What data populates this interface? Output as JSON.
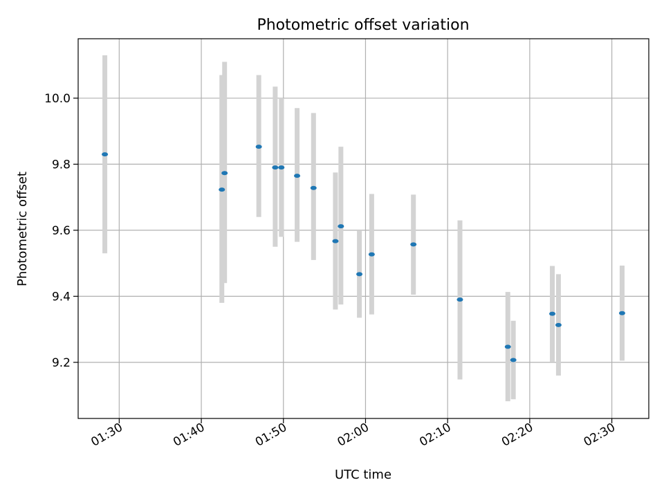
{
  "chart_data": {
    "type": "scatter",
    "title": "Photometric offset variation",
    "xlabel": "UTC time",
    "ylabel": "Photometric offset",
    "xlim": [
      "01:25:00",
      "02:34:30"
    ],
    "ylim": [
      9.03,
      10.18
    ],
    "x_ticks": [
      "01:30",
      "01:40",
      "01:50",
      "02:00",
      "02:10",
      "02:20",
      "02:30"
    ],
    "y_ticks": [
      9.2,
      9.4,
      9.6,
      9.8,
      10.0
    ],
    "grid": true,
    "colors": {
      "marker": "#1f77b4",
      "errorbar": "#d3d3d3"
    },
    "points": [
      {
        "x": "01:28:15",
        "y": 9.83,
        "low": 9.53,
        "high": 10.13
      },
      {
        "x": "01:42:30",
        "y": 9.723,
        "low": 9.38,
        "high": 10.07
      },
      {
        "x": "01:42:50",
        "y": 9.773,
        "low": 9.44,
        "high": 10.11
      },
      {
        "x": "01:47:00",
        "y": 9.853,
        "low": 9.64,
        "high": 10.07
      },
      {
        "x": "01:49:00",
        "y": 9.79,
        "low": 9.55,
        "high": 10.035
      },
      {
        "x": "01:49:45",
        "y": 9.79,
        "low": 9.58,
        "high": 10.0
      },
      {
        "x": "01:51:40",
        "y": 9.765,
        "low": 9.565,
        "high": 9.97
      },
      {
        "x": "01:53:40",
        "y": 9.728,
        "low": 9.51,
        "high": 9.955
      },
      {
        "x": "01:56:20",
        "y": 9.567,
        "low": 9.36,
        "high": 9.775
      },
      {
        "x": "01:57:00",
        "y": 9.612,
        "low": 9.375,
        "high": 9.853
      },
      {
        "x": "01:59:15",
        "y": 9.467,
        "low": 9.335,
        "high": 9.598
      },
      {
        "x": "02:00:45",
        "y": 9.527,
        "low": 9.345,
        "high": 9.71
      },
      {
        "x": "02:05:50",
        "y": 9.557,
        "low": 9.405,
        "high": 9.708
      },
      {
        "x": "02:11:30",
        "y": 9.39,
        "low": 9.148,
        "high": 9.63
      },
      {
        "x": "02:17:20",
        "y": 9.247,
        "low": 9.082,
        "high": 9.413
      },
      {
        "x": "02:18:00",
        "y": 9.207,
        "low": 9.088,
        "high": 9.326
      },
      {
        "x": "02:22:45",
        "y": 9.347,
        "low": 9.202,
        "high": 9.492
      },
      {
        "x": "02:23:30",
        "y": 9.313,
        "low": 9.16,
        "high": 9.467
      },
      {
        "x": "02:31:15",
        "y": 9.349,
        "low": 9.205,
        "high": 9.493
      }
    ]
  }
}
